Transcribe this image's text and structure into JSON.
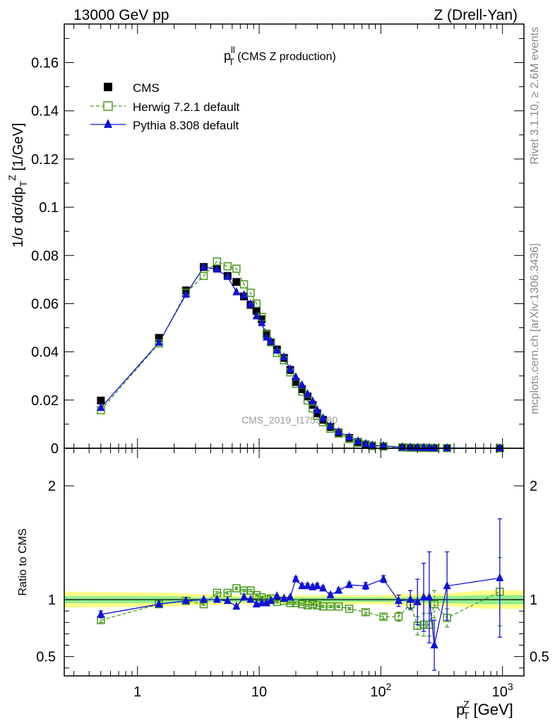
{
  "header": {
    "left": "13000 GeV pp",
    "right": "Z (Drell-Yan)"
  },
  "side_labels": {
    "rivet": "Rivet 3.1.10, ≥ 2.6M events",
    "mcplots": "mcplots.cern.ch [arXiv:1306.3436]"
  },
  "watermark": "CMS_2019_I1753680",
  "chart_data": [
    {
      "type": "scatter",
      "title_main": "p",
      "title_sup": "ll",
      "title_sub": "T",
      "title_rest": " (CMS Z production)",
      "ylabel": "1/σ dσ/dp",
      "ylabel_sub": "T",
      "ylabel_sup": "Z",
      "ylabel_unit": " [1/GeV]",
      "x_scale": "log",
      "xlim": [
        0.25,
        1500
      ],
      "ylim": [
        0,
        0.176
      ],
      "yticks": [
        0,
        0.02,
        0.04,
        0.06,
        0.08,
        0.1,
        0.12,
        0.14,
        0.16
      ],
      "ytick_labels": [
        "0",
        "0.02",
        "0.04",
        "0.06",
        "0.08",
        "0.1",
        "0.12",
        "0.14",
        "0.16"
      ],
      "legend_position": "top-left",
      "x": [
        0.5,
        1.5,
        2.5,
        3.5,
        4.5,
        5.5,
        6.5,
        7.5,
        8.5,
        9.5,
        10.5,
        11.5,
        12.5,
        14,
        16,
        18,
        20,
        22.5,
        25,
        27.5,
        30,
        33.5,
        38.5,
        45,
        55,
        65,
        75,
        85,
        105,
        150,
        175,
        200,
        225,
        250,
        275,
        350,
        950
      ],
      "series": [
        {
          "name": "CMS",
          "style": "square-black",
          "color": "#000000",
          "values": [
            0.0198,
            0.0458,
            0.0655,
            0.0752,
            0.0745,
            0.0715,
            0.069,
            0.063,
            0.0595,
            0.057,
            0.0535,
            0.0475,
            0.044,
            0.041,
            0.0375,
            0.0325,
            0.0275,
            0.0245,
            0.0215,
            0.018,
            0.0145,
            0.0118,
            0.0088,
            0.0065,
            0.0043,
            0.0026,
            0.0016,
            0.0011,
            0.00085,
            0.0004,
            0.0003,
            0.00025,
            0.0002,
            0.00015,
            0.00012,
            8e-05,
            2e-05
          ]
        },
        {
          "name": "Herwig 7.2.1 default",
          "style": "open-square-dashed",
          "color": "#4a9a1e",
          "values": [
            0.0158,
            0.0435,
            0.0645,
            0.0715,
            0.0775,
            0.0755,
            0.0745,
            0.068,
            0.0645,
            0.06,
            0.0545,
            0.0472,
            0.044,
            0.0395,
            0.0365,
            0.0315,
            0.0268,
            0.0235,
            0.0198,
            0.0165,
            0.0135,
            0.0108,
            0.0081,
            0.0061,
            0.0038,
            0.0023,
            0.0014,
            0.00095,
            0.00072,
            0.00034,
            0.00024,
            0.0002,
            0.00015,
            0.00012,
            0.0001,
            7e-05,
            2e-05
          ]
        },
        {
          "name": "Pythia 8.308 default",
          "style": "triangle-solid",
          "color": "#1010d8",
          "values": [
            0.0168,
            0.0438,
            0.0638,
            0.0752,
            0.0742,
            0.0712,
            0.0648,
            0.0635,
            0.0598,
            0.0548,
            0.052,
            0.046,
            0.0442,
            0.0406,
            0.0378,
            0.0328,
            0.0295,
            0.0262,
            0.0225,
            0.0195,
            0.0158,
            0.0125,
            0.0092,
            0.0068,
            0.0046,
            0.0029,
            0.0018,
            0.0012,
            0.00098,
            0.00042,
            0.0003,
            0.00025,
            0.00021,
            0.00015,
            0.0001,
            9e-05,
            2e-05
          ]
        }
      ]
    },
    {
      "type": "scatter",
      "ylabel": "Ratio to CMS",
      "xlabel_main": "p",
      "xlabel_sub": "T",
      "xlabel_sup": "Z",
      "xlabel_unit": " [GeV]",
      "x_scale": "log",
      "xlim": [
        0.25,
        1500
      ],
      "ylim": [
        0.33,
        2.33
      ],
      "yticks": [
        0.5,
        1,
        2
      ],
      "ytick_labels": [
        "0.5",
        "1",
        "2"
      ],
      "x_major_ticks": [
        1,
        10,
        100,
        1000
      ],
      "x_tick_labels": [
        {
          "base": "1",
          "exp": ""
        },
        {
          "base": "10",
          "exp": ""
        },
        {
          "base": "10",
          "exp": "2"
        },
        {
          "base": "10",
          "exp": "3"
        }
      ],
      "uncertainty_bands": {
        "x_edges": [
          0.25,
          2,
          3,
          6,
          10,
          20,
          30,
          60,
          100,
          150,
          250,
          400,
          700,
          1500
        ],
        "outer_lo": [
          0.93,
          0.94,
          0.95,
          0.96,
          0.96,
          0.96,
          0.96,
          0.96,
          0.96,
          0.95,
          0.95,
          0.94,
          0.92,
          0.92
        ],
        "outer_hi": [
          1.07,
          1.06,
          1.05,
          1.04,
          1.04,
          1.04,
          1.04,
          1.04,
          1.04,
          1.05,
          1.05,
          1.06,
          1.08,
          1.08
        ],
        "inner_lo": [
          0.97,
          0.97,
          0.98,
          0.98,
          0.98,
          0.98,
          0.98,
          0.98,
          0.98,
          0.98,
          0.97,
          0.97,
          0.96,
          0.96
        ],
        "inner_hi": [
          1.03,
          1.03,
          1.02,
          1.02,
          1.02,
          1.02,
          1.02,
          1.02,
          1.02,
          1.02,
          1.03,
          1.03,
          1.04,
          1.04
        ],
        "outer_color": "#ffff88",
        "inner_color": "#90ee90"
      },
      "x": [
        0.5,
        1.5,
        2.5,
        3.5,
        4.5,
        5.5,
        6.5,
        7.5,
        8.5,
        9.5,
        10.5,
        11.5,
        12.5,
        14,
        16,
        18,
        20,
        22.5,
        25,
        27.5,
        30,
        33.5,
        38.5,
        45,
        55,
        75,
        105,
        140,
        175,
        200,
        225,
        250,
        275,
        350,
        950
      ],
      "series": [
        {
          "name": "Herwig 7.2.1 default",
          "color": "#4a9a1e",
          "values": [
            0.82,
            0.96,
            0.99,
            0.96,
            1.06,
            1.06,
            1.1,
            1.08,
            1.08,
            1.04,
            1.02,
            1.0,
            1.01,
            0.98,
            0.99,
            0.97,
            0.97,
            0.96,
            0.95,
            0.96,
            0.95,
            0.94,
            0.94,
            0.94,
            0.92,
            0.89,
            0.85,
            0.85,
            0.96,
            0.77,
            0.78,
            0.78,
            0.96,
            0.84,
            1.07
          ],
          "err": [
            0.02,
            0.01,
            0.01,
            0.01,
            0.01,
            0.01,
            0.01,
            0.01,
            0.01,
            0.01,
            0.01,
            0.01,
            0.01,
            0.01,
            0.01,
            0.01,
            0.01,
            0.01,
            0.01,
            0.01,
            0.01,
            0.01,
            0.01,
            0.01,
            0.01,
            0.02,
            0.02,
            0.04,
            0.05,
            0.08,
            0.1,
            0.1,
            0.12,
            0.08,
            0.3
          ]
        },
        {
          "name": "Pythia 8.308 default",
          "color": "#1010d8",
          "values": [
            0.87,
            0.96,
            0.99,
            1.0,
            1.0,
            0.99,
            0.94,
            1.02,
            1.0,
            0.96,
            0.97,
            0.97,
            0.99,
            1.03,
            1.01,
            1.02,
            1.18,
            1.12,
            1.12,
            1.11,
            1.12,
            1.1,
            1.04,
            1.08,
            1.13,
            1.12,
            1.18,
            0.99,
            1.0,
            0.98,
            1.02,
            1.02,
            0.6,
            1.12,
            1.19
          ],
          "err": [
            0.03,
            0.01,
            0.01,
            0.01,
            0.01,
            0.01,
            0.01,
            0.01,
            0.01,
            0.01,
            0.01,
            0.01,
            0.01,
            0.01,
            0.01,
            0.01,
            0.02,
            0.02,
            0.02,
            0.02,
            0.02,
            0.02,
            0.02,
            0.02,
            0.02,
            0.03,
            0.03,
            0.05,
            0.08,
            0.2,
            0.3,
            0.4,
            0.22,
            0.3,
            0.52
          ]
        }
      ]
    }
  ]
}
